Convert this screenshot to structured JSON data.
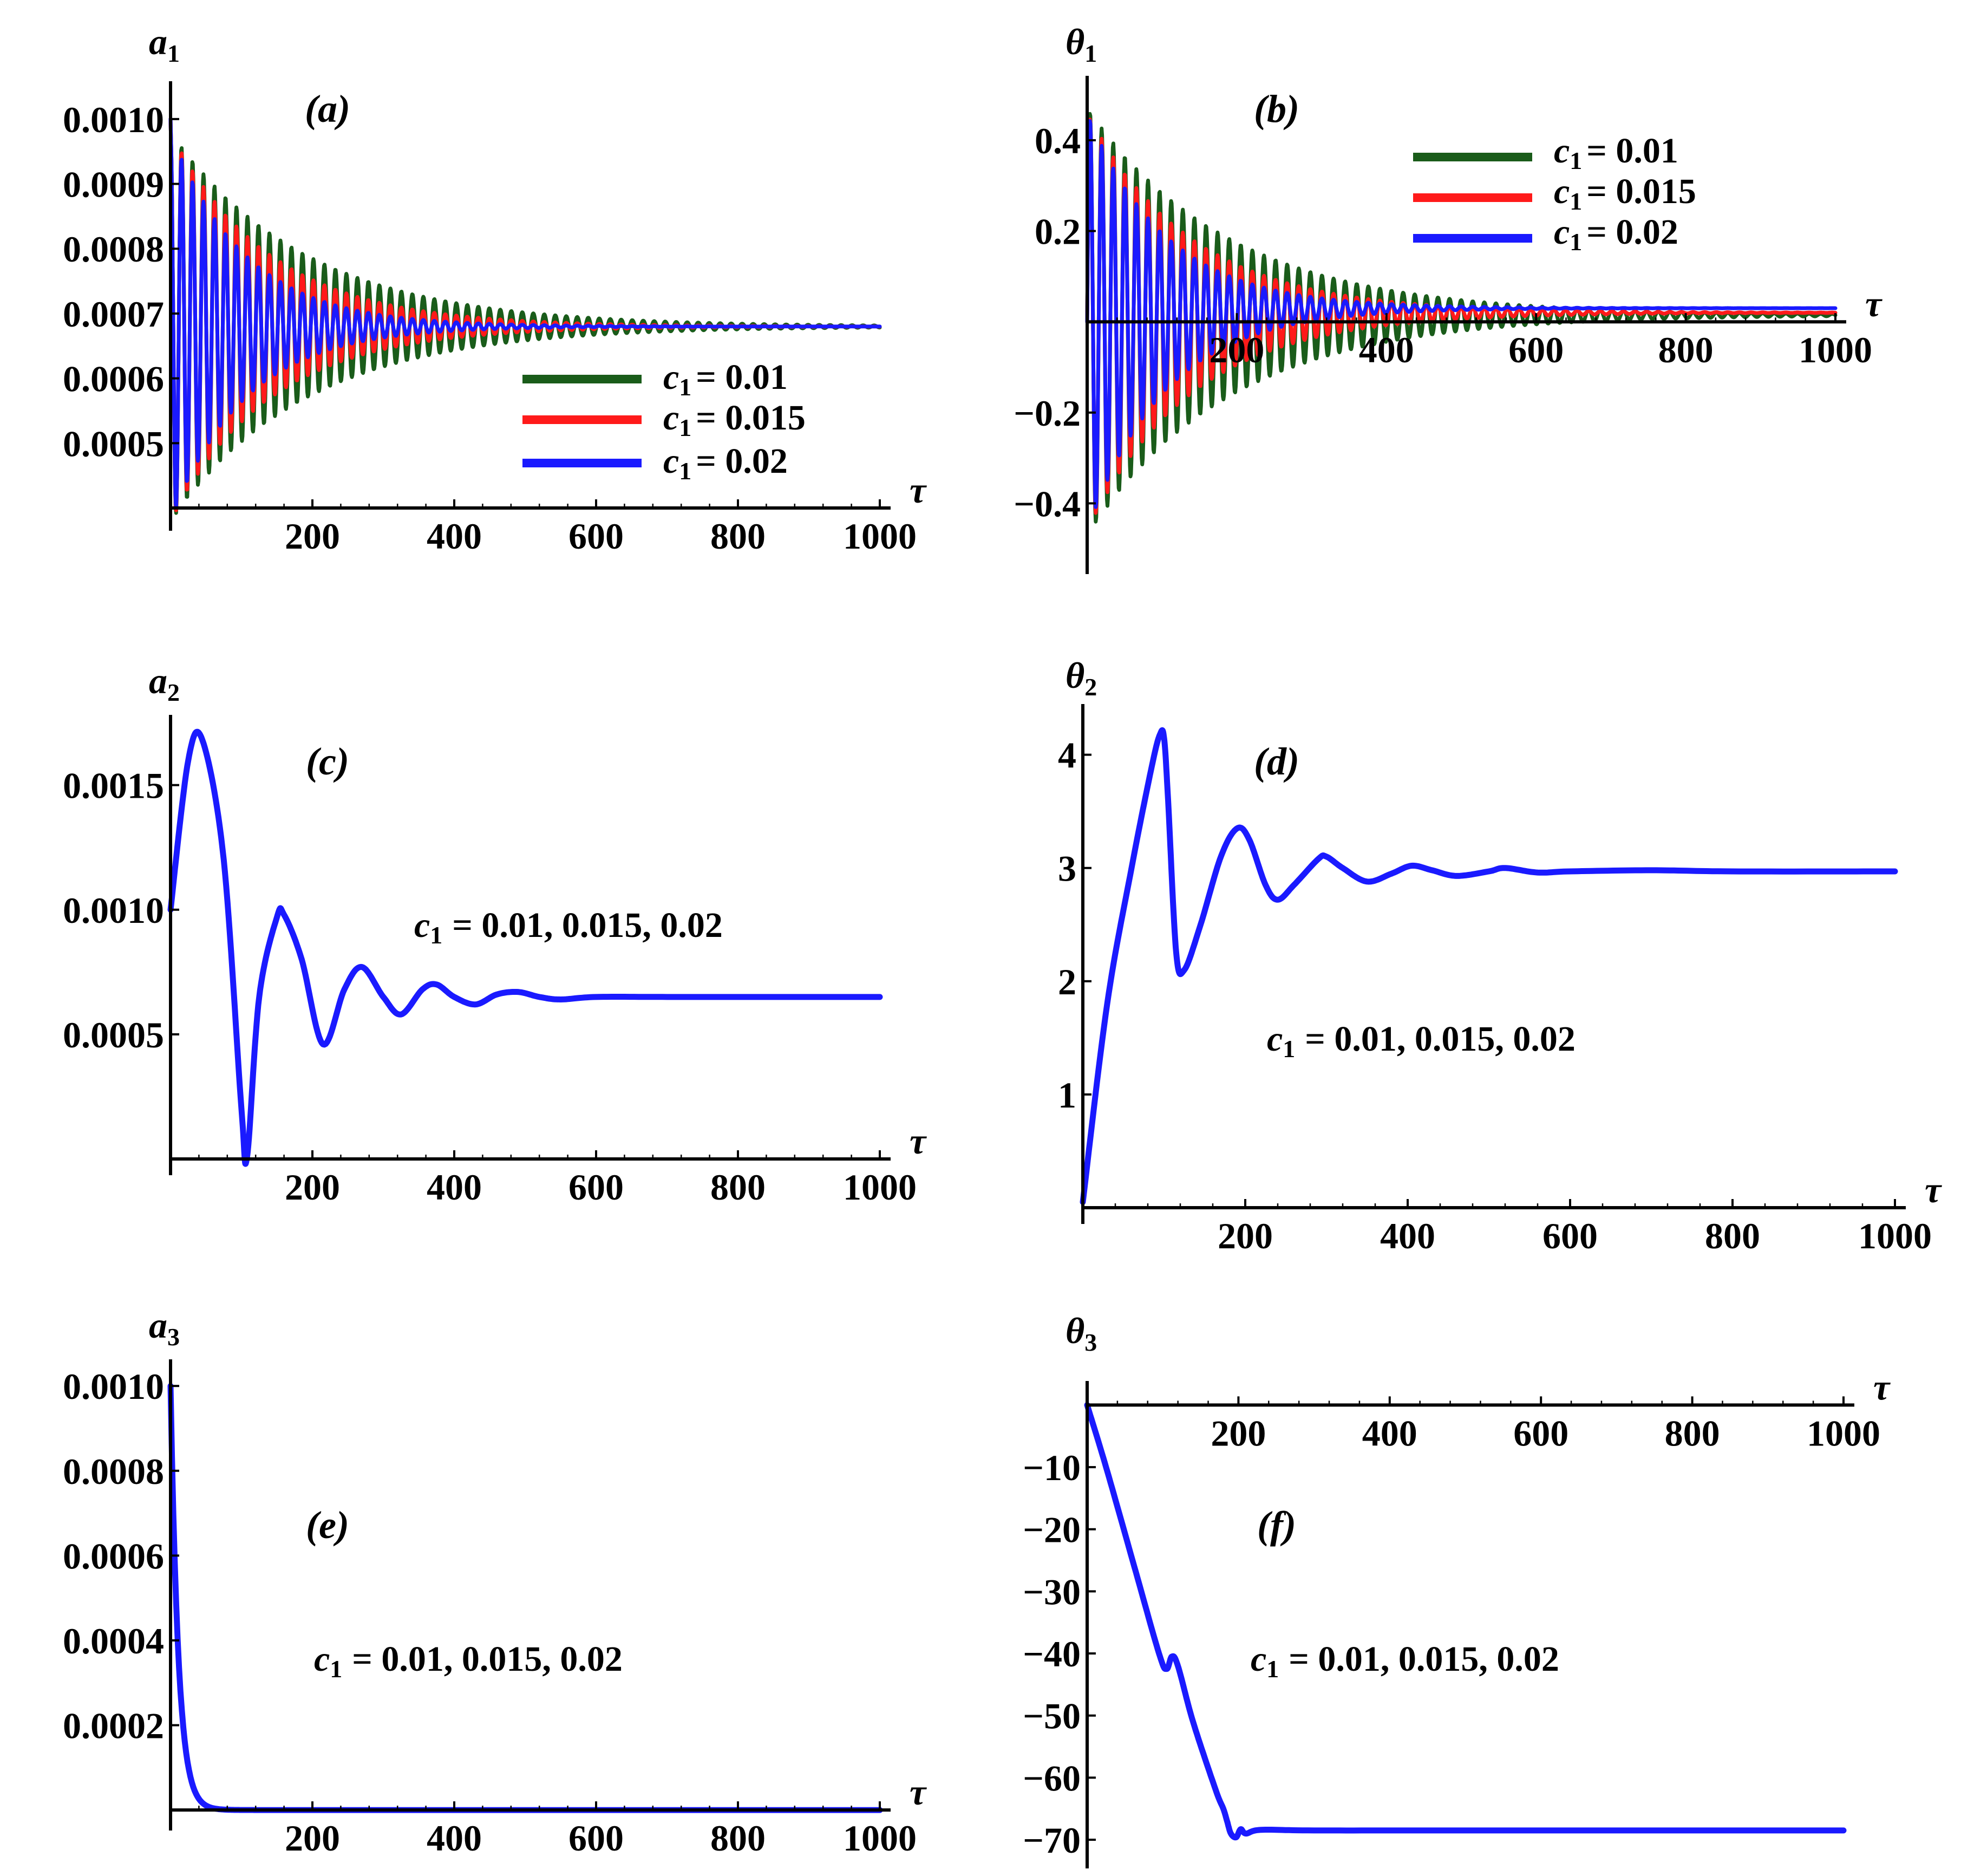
{
  "figure": {
    "tau_symbol": "τ",
    "legend_symbol": "c",
    "legend_sub": "1",
    "legend_values": [
      "= 0.01",
      "= 0.015",
      "= 0.02"
    ],
    "note_text": "= 0.01, 0.015, 0.02",
    "colors": {
      "c1_001": "#1a5c1a",
      "c1_0015": "#ff1a1a",
      "c1_002": "#1a1aff"
    }
  },
  "chart_data": [
    {
      "type": "line",
      "panel": "(a)",
      "ylabel": "a",
      "ylabel_sub": "1",
      "xlabel": "τ",
      "xlim": [
        0,
        1000
      ],
      "ylim": [
        0.00039,
        0.00105
      ],
      "x_origin_y": 0.0004,
      "xticks": [
        "200",
        "400",
        "600",
        "800",
        "1000"
      ],
      "yticks": [
        {
          "v": 0.001,
          "label": "0.0010"
        },
        {
          "v": 0.0009,
          "label": "0.0009"
        },
        {
          "v": 0.0008,
          "label": "0.0008"
        },
        {
          "v": 0.0007,
          "label": "0.0007"
        },
        {
          "v": 0.0006,
          "label": "0.0006"
        },
        {
          "v": 0.0005,
          "label": "0.0005"
        }
      ],
      "legend": true,
      "legend_position": "lower-right",
      "series": [
        {
          "name": "c1 = 0.01",
          "color": "#1a5c1a",
          "kind": "damped-oscillation",
          "start": 0.001,
          "final": 0.00068,
          "amp0": 0.0003,
          "decay_tau": 190,
          "period": 15.5
        },
        {
          "name": "c1 = 0.015",
          "color": "#ff1a1a",
          "kind": "damped-oscillation",
          "start": 0.001,
          "final": 0.00068,
          "amp0": 0.0003,
          "decay_tau": 140,
          "period": 15.5
        },
        {
          "name": "c1 = 0.02",
          "color": "#1a1aff",
          "kind": "damped-oscillation",
          "start": 0.001,
          "final": 0.00068,
          "amp0": 0.0003,
          "decay_tau": 105,
          "period": 15.5
        }
      ]
    },
    {
      "type": "line",
      "panel": "(b)",
      "ylabel": "θ",
      "ylabel_sub": "1",
      "xlabel": "τ",
      "xlim": [
        0,
        1000
      ],
      "ylim": [
        -0.52,
        0.53
      ],
      "x_origin_y": 0,
      "xticks": [
        "200",
        "400",
        "600",
        "800",
        "1000"
      ],
      "yticks": [
        {
          "v": 0.4,
          "label": "0.4"
        },
        {
          "v": 0.2,
          "label": "0.2"
        },
        {
          "v": -0.2,
          "label": "−0.2"
        },
        {
          "v": -0.4,
          "label": "−0.4"
        }
      ],
      "legend": true,
      "legend_position": "top-right",
      "series": [
        {
          "name": "c1 = 0.01",
          "color": "#1a5c1a",
          "kind": "damped-oscillation",
          "start": 0.0,
          "final": 0.015,
          "amp0": 0.47,
          "decay_tau": 190,
          "period": 15.5
        },
        {
          "name": "c1 = 0.015",
          "color": "#ff1a1a",
          "kind": "damped-oscillation",
          "start": 0.0,
          "final": 0.02,
          "amp0": 0.46,
          "decay_tau": 140,
          "period": 15.5
        },
        {
          "name": "c1 = 0.02",
          "color": "#1a1aff",
          "kind": "damped-oscillation",
          "start": 0.0,
          "final": 0.03,
          "amp0": 0.46,
          "decay_tau": 105,
          "period": 15.5
        }
      ]
    },
    {
      "type": "line",
      "panel": "(c)",
      "ylabel": "a",
      "ylabel_sub": "2",
      "xlabel": "τ",
      "xlim": [
        0,
        1000
      ],
      "ylim": [
        0.0,
        0.00176
      ],
      "x_origin_y": 0.0,
      "xticks": [
        "200",
        "400",
        "600",
        "800",
        "1000"
      ],
      "yticks": [
        {
          "v": 0.0015,
          "label": "0.0015"
        },
        {
          "v": 0.001,
          "label": "0.0010"
        },
        {
          "v": 0.0005,
          "label": "0.0005"
        }
      ],
      "legend": false,
      "annotation": "c1 = 0.01, 0.015, 0.02",
      "series": [
        {
          "name": "c1 = 0.01, 0.015, 0.02",
          "color": "#1a1aff",
          "kind": "points",
          "x": [
            0,
            25,
            45,
            75,
            100,
            108,
            125,
            150,
            160,
            185,
            215,
            245,
            270,
            300,
            325,
            355,
            375,
            400,
            430,
            460,
            490,
            520,
            550,
            600,
            700,
            800,
            1000
          ],
          "y": [
            0.001,
            0.0016,
            0.00168,
            0.0012,
            0.0002,
            1e-05,
            0.00065,
            0.00097,
            0.00098,
            0.0008,
            0.00046,
            0.00068,
            0.00077,
            0.00065,
            0.00058,
            0.00068,
            0.0007,
            0.00065,
            0.00062,
            0.00066,
            0.00067,
            0.00065,
            0.00064,
            0.00065,
            0.00065,
            0.00065,
            0.00065
          ]
        }
      ]
    },
    {
      "type": "line",
      "panel": "(d)",
      "ylabel": "θ",
      "ylabel_sub": "2",
      "xlabel": "τ",
      "xlim": [
        0,
        1000
      ],
      "ylim": [
        0,
        4.4
      ],
      "x_origin_y": 0,
      "xticks": [
        "200",
        "400",
        "600",
        "800",
        "1000"
      ],
      "yticks": [
        {
          "v": 4,
          "label": "4"
        },
        {
          "v": 3,
          "label": "3"
        },
        {
          "v": 2,
          "label": "2"
        },
        {
          "v": 1,
          "label": "1"
        }
      ],
      "legend": false,
      "annotation": "c1 = 0.01, 0.015, 0.02",
      "series": [
        {
          "name": "c1 = 0.01, 0.015, 0.02",
          "color": "#1a1aff",
          "kind": "points",
          "x": [
            0,
            30,
            60,
            85,
            95,
            100,
            105,
            115,
            125,
            145,
            170,
            190,
            205,
            225,
            240,
            260,
            290,
            300,
            320,
            350,
            380,
            405,
            430,
            460,
            500,
            520,
            560,
            600,
            700,
            800,
            1000
          ],
          "y": [
            0.05,
            1.8,
            3.0,
            3.9,
            4.18,
            4.15,
            3.6,
            2.25,
            2.1,
            2.5,
            3.1,
            3.35,
            3.25,
            2.85,
            2.72,
            2.85,
            3.08,
            3.1,
            3.0,
            2.88,
            2.95,
            3.02,
            2.98,
            2.93,
            2.97,
            3.0,
            2.96,
            2.97,
            2.98,
            2.97,
            2.97
          ]
        }
      ]
    },
    {
      "type": "line",
      "panel": "(e)",
      "ylabel": "a",
      "ylabel_sub": "3",
      "xlabel": "τ",
      "xlim": [
        0,
        1000
      ],
      "ylim": [
        -1e-05,
        0.00105
      ],
      "x_origin_y": 0,
      "xticks": [
        "200",
        "400",
        "600",
        "800",
        "1000"
      ],
      "yticks": [
        {
          "v": 0.001,
          "label": "0.0010"
        },
        {
          "v": 0.0008,
          "label": "0.0008"
        },
        {
          "v": 0.0006,
          "label": "0.0006"
        },
        {
          "v": 0.0004,
          "label": "0.0004"
        },
        {
          "v": 0.0002,
          "label": "0.0002"
        }
      ],
      "legend": false,
      "annotation": "c1 = 0.01, 0.015, 0.02",
      "series": [
        {
          "name": "c1 = 0.01, 0.015, 0.02",
          "color": "#1a1aff",
          "kind": "exp-decay",
          "start": 0.001,
          "final": 0.0,
          "decay_tau": 11
        }
      ]
    },
    {
      "type": "line",
      "panel": "(f)",
      "ylabel": "θ",
      "ylabel_sub": "3",
      "xlabel": "τ",
      "xlim": [
        0,
        1000
      ],
      "ylim": [
        -72,
        3
      ],
      "x_origin_y": 0,
      "xticks": [
        "200",
        "400",
        "600",
        "800",
        "1000"
      ],
      "yticks": [
        {
          "v": -10,
          "label": "−10"
        },
        {
          "v": -20,
          "label": "−20"
        },
        {
          "v": -30,
          "label": "−30"
        },
        {
          "v": -40,
          "label": "−40"
        },
        {
          "v": -50,
          "label": "−50"
        },
        {
          "v": -60,
          "label": "−60"
        },
        {
          "v": -70,
          "label": "−70"
        }
      ],
      "legend": false,
      "annotation": "c1 = 0.01, 0.015, 0.02",
      "series": [
        {
          "name": "c1 = 0.01, 0.015, 0.02",
          "color": "#1a1aff",
          "kind": "points",
          "x": [
            0,
            25,
            60,
            95,
            105,
            112,
            120,
            140,
            170,
            180,
            185,
            190,
            197,
            203,
            210,
            230,
            300,
            500,
            1000
          ],
          "y": [
            0,
            -10,
            -25,
            -40,
            -42.5,
            -40.5,
            -42,
            -51,
            -62,
            -65,
            -67,
            -69,
            -69.6,
            -68.3,
            -69,
            -68.4,
            -68.5,
            -68.5,
            -68.5
          ]
        }
      ]
    }
  ]
}
